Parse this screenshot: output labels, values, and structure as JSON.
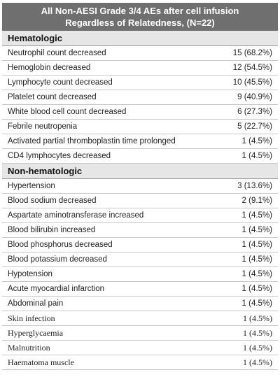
{
  "header": {
    "title_lines": [
      "All Non-AESI Grade 3/4 AEs after cell infusion",
      "Regardless of Relatedness, (N=22)"
    ]
  },
  "sections": [
    {
      "title": "Hematologic",
      "rows": [
        [
          "Neutrophil count decreased",
          "15 (68.2%)"
        ],
        [
          "Hemoglobin decreased",
          "12 (54.5%)"
        ],
        [
          "Lymphocyte count decreased",
          "10 (45.5%)"
        ],
        [
          "Platelet count decreased",
          "9 (40.9%)"
        ],
        [
          "White blood cell count decreased",
          "6 (27.3%)"
        ],
        [
          "Febrile neutropenia",
          "5 (22.7%)"
        ],
        [
          "Activated partial thromboplastin time prolonged",
          "1 (4.5%)"
        ],
        [
          "CD4 lymphocytes decreased",
          "1 (4.5%)"
        ]
      ]
    },
    {
      "title": "Non-hematologic",
      "rows": [
        [
          "Hypertension",
          "3 (13.6%)"
        ],
        [
          "Blood sodium decreased",
          "2 (9.1%)"
        ],
        [
          "Aspartate aminotransferase increased",
          "1 (4.5%)"
        ],
        [
          "Blood bilirubin increased",
          "1 (4.5%)"
        ],
        [
          "Blood phosphorus decreased",
          "1 (4.5%)"
        ],
        [
          "Blood potassium decreased",
          "1 (4.5%)"
        ],
        [
          "Hypotension",
          "1 (4.5%)"
        ],
        [
          "Acute myocardial infarction",
          "1 (4.5%)"
        ],
        [
          "Abdominal pain",
          "1 (4.5%)"
        ],
        [
          "Skin infection",
          "1 (4.5%)"
        ],
        [
          "Hyperglycaemia",
          "1 (4.5%)"
        ],
        [
          "Malnutrition",
          "1 (4.5%)"
        ],
        [
          "Haematoma muscle",
          "1 (4.5%)"
        ]
      ]
    }
  ]
}
